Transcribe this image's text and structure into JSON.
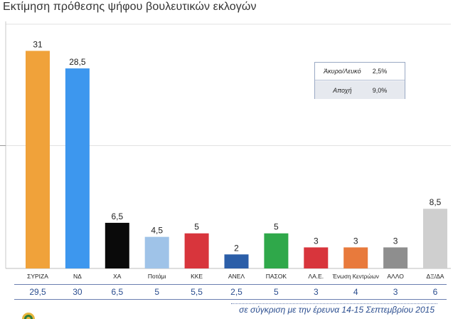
{
  "header": {
    "title": "Εκτίμηση πρόθεσης ψήφου βουλευτικών εκλογών"
  },
  "legend_box": {
    "rows": [
      {
        "label": "Άκυρο/Λευκό",
        "value": "2,5%"
      },
      {
        "label": "Αποχή",
        "value": "9,0%"
      }
    ]
  },
  "chart_data": {
    "type": "bar",
    "title": "Εκτίμηση πρόθεσης ψήφου βουλευτικών εκλογών",
    "categories": [
      "ΣΥΡΙΖΑ",
      "ΝΔ",
      "ΧΑ",
      "Ποτάμι",
      "ΚΚΕ",
      "ΑΝΕΛ",
      "ΠΑΣΟΚ",
      "ΛΑ.Ε.",
      "Ένωση Κεντρώων",
      "ΑΛΛΟ",
      "ΔΞ/ΔΑ"
    ],
    "values": [
      31,
      28.5,
      6.5,
      4.5,
      5,
      2,
      5,
      3,
      3,
      3,
      8.5
    ],
    "value_labels": [
      "31",
      "28,5",
      "6,5",
      "4,5",
      "5",
      "2",
      "5",
      "3",
      "3",
      "3",
      "8,5"
    ],
    "colors": [
      "#f0a23a",
      "#3d97ee",
      "#0a0a0a",
      "#9fc3e8",
      "#d8353c",
      "#2b5ea8",
      "#2fa84a",
      "#d8353c",
      "#e87a3c",
      "#8e8e8e",
      "#cfcfcf"
    ],
    "ylim": [
      0,
      35
    ],
    "grid": true,
    "comparison": {
      "label": "σε σύγκριση με την έρευνα 14-15 Σεπτεμβρίου 2015",
      "values": [
        "29,5",
        "30",
        "6,5",
        "5",
        "5,5",
        "2,5",
        "5",
        "3",
        "4",
        "3",
        "6"
      ]
    }
  }
}
